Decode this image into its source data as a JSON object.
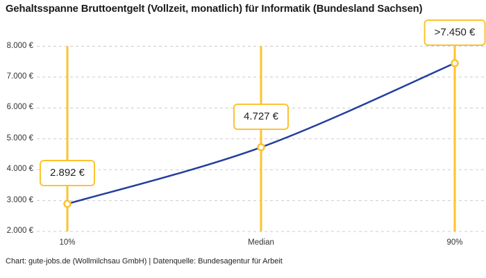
{
  "header": {
    "title": "Gehaltsspanne Bruttoentgelt (Vollzeit, monatlich) für Informatik (Bundesland Sachsen)"
  },
  "footer": {
    "text": "Chart: gute-jobs.de (Wollmilchsau GmbH) | Datenquelle: Bundesagentur für Arbeit"
  },
  "chart_data": {
    "type": "line",
    "title": "Gehaltsspanne Bruttoentgelt (Vollzeit, monatlich) für Informatik (Bundesland Sachsen)",
    "categories": [
      "10%",
      "Median",
      "90%"
    ],
    "percentile_positions": [
      10,
      50,
      90
    ],
    "values": [
      2892,
      4727,
      7450
    ],
    "value_labels": [
      "2.892 €",
      "4.727 €",
      ">7.450 €"
    ],
    "ylim": [
      2000,
      8000
    ],
    "yticks": [
      {
        "value": 2000,
        "label": "2.000 €"
      },
      {
        "value": 3000,
        "label": "3.000 €"
      },
      {
        "value": 4000,
        "label": "4.000 €"
      },
      {
        "value": 5000,
        "label": "5.000 €"
      },
      {
        "value": 6000,
        "label": "6.000 €"
      },
      {
        "value": 7000,
        "label": "7.000 €"
      },
      {
        "value": 8000,
        "label": "8.000 €"
      }
    ],
    "grid": "horizontal-dashed",
    "legend": "none",
    "xlabel": "",
    "ylabel": "",
    "colors": {
      "accent_yellow": "#FCC32F",
      "line_blue": "#233E9E",
      "grid_gray": "#CBCBCB",
      "title_text": "#1A1A1A",
      "tick_text": "#333333",
      "footer_text": "#222222",
      "marker_fill": "#FFFFFF"
    },
    "source": "Bundesagentur für Arbeit",
    "chart_credit": "gute-jobs.de (Wollmilchsau GmbH)"
  }
}
